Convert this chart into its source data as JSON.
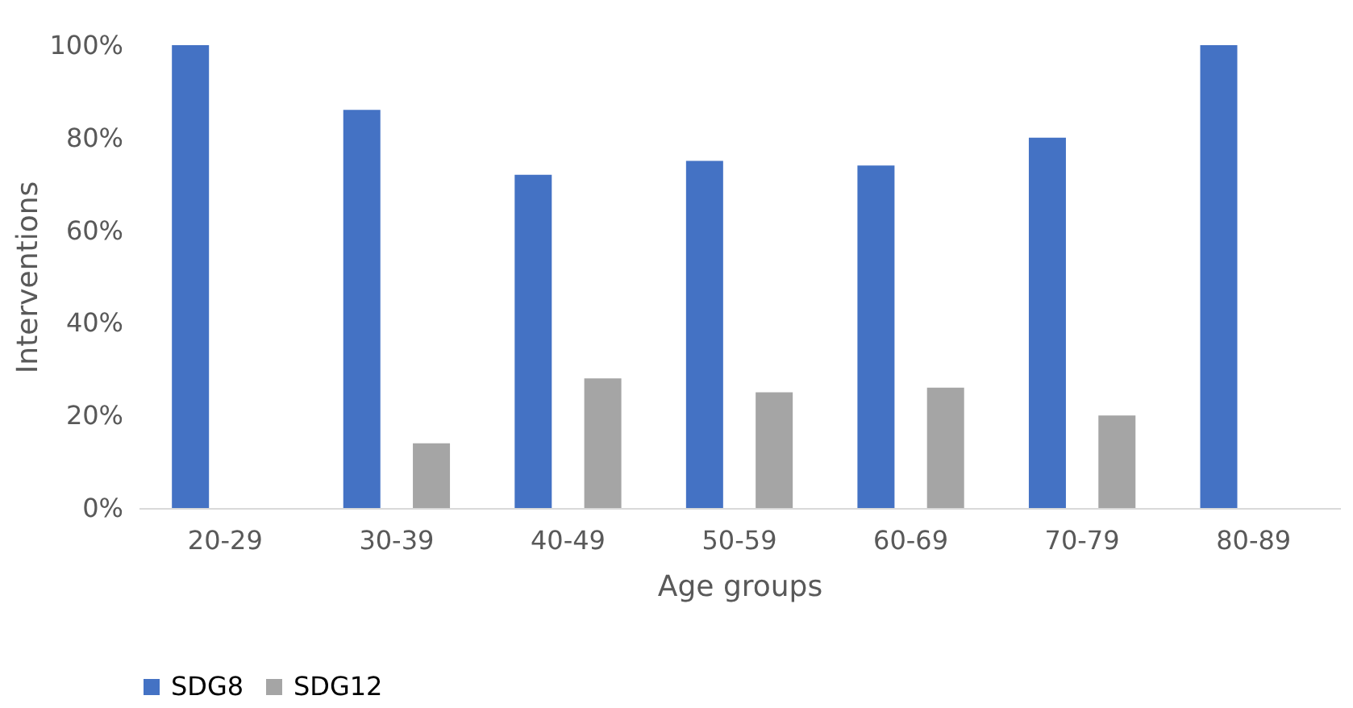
{
  "chart_data": {
    "type": "bar",
    "xlabel": "Age groups",
    "ylabel": "Interventions",
    "categories": [
      "20-29",
      "30-39",
      "40-49",
      "50-59",
      "60-69",
      "70-79",
      "80-89"
    ],
    "series": [
      {
        "name": "SDG8",
        "color": "#4472c4",
        "values": [
          100,
          86,
          72,
          75,
          74,
          80,
          100
        ]
      },
      {
        "name": "SDG12",
        "color": "#a5a5a5",
        "values": [
          0,
          14,
          28,
          25,
          26,
          20,
          0
        ]
      }
    ],
    "ylim": [
      0,
      100
    ],
    "yticks": [
      {
        "value": 0,
        "label": "0%"
      },
      {
        "value": 20,
        "label": "20%"
      },
      {
        "value": 40,
        "label": "40%"
      },
      {
        "value": 60,
        "label": "60%"
      },
      {
        "value": 80,
        "label": "80%"
      },
      {
        "value": 100,
        "label": "100%"
      }
    ],
    "grid": false,
    "legend": "bottom"
  }
}
